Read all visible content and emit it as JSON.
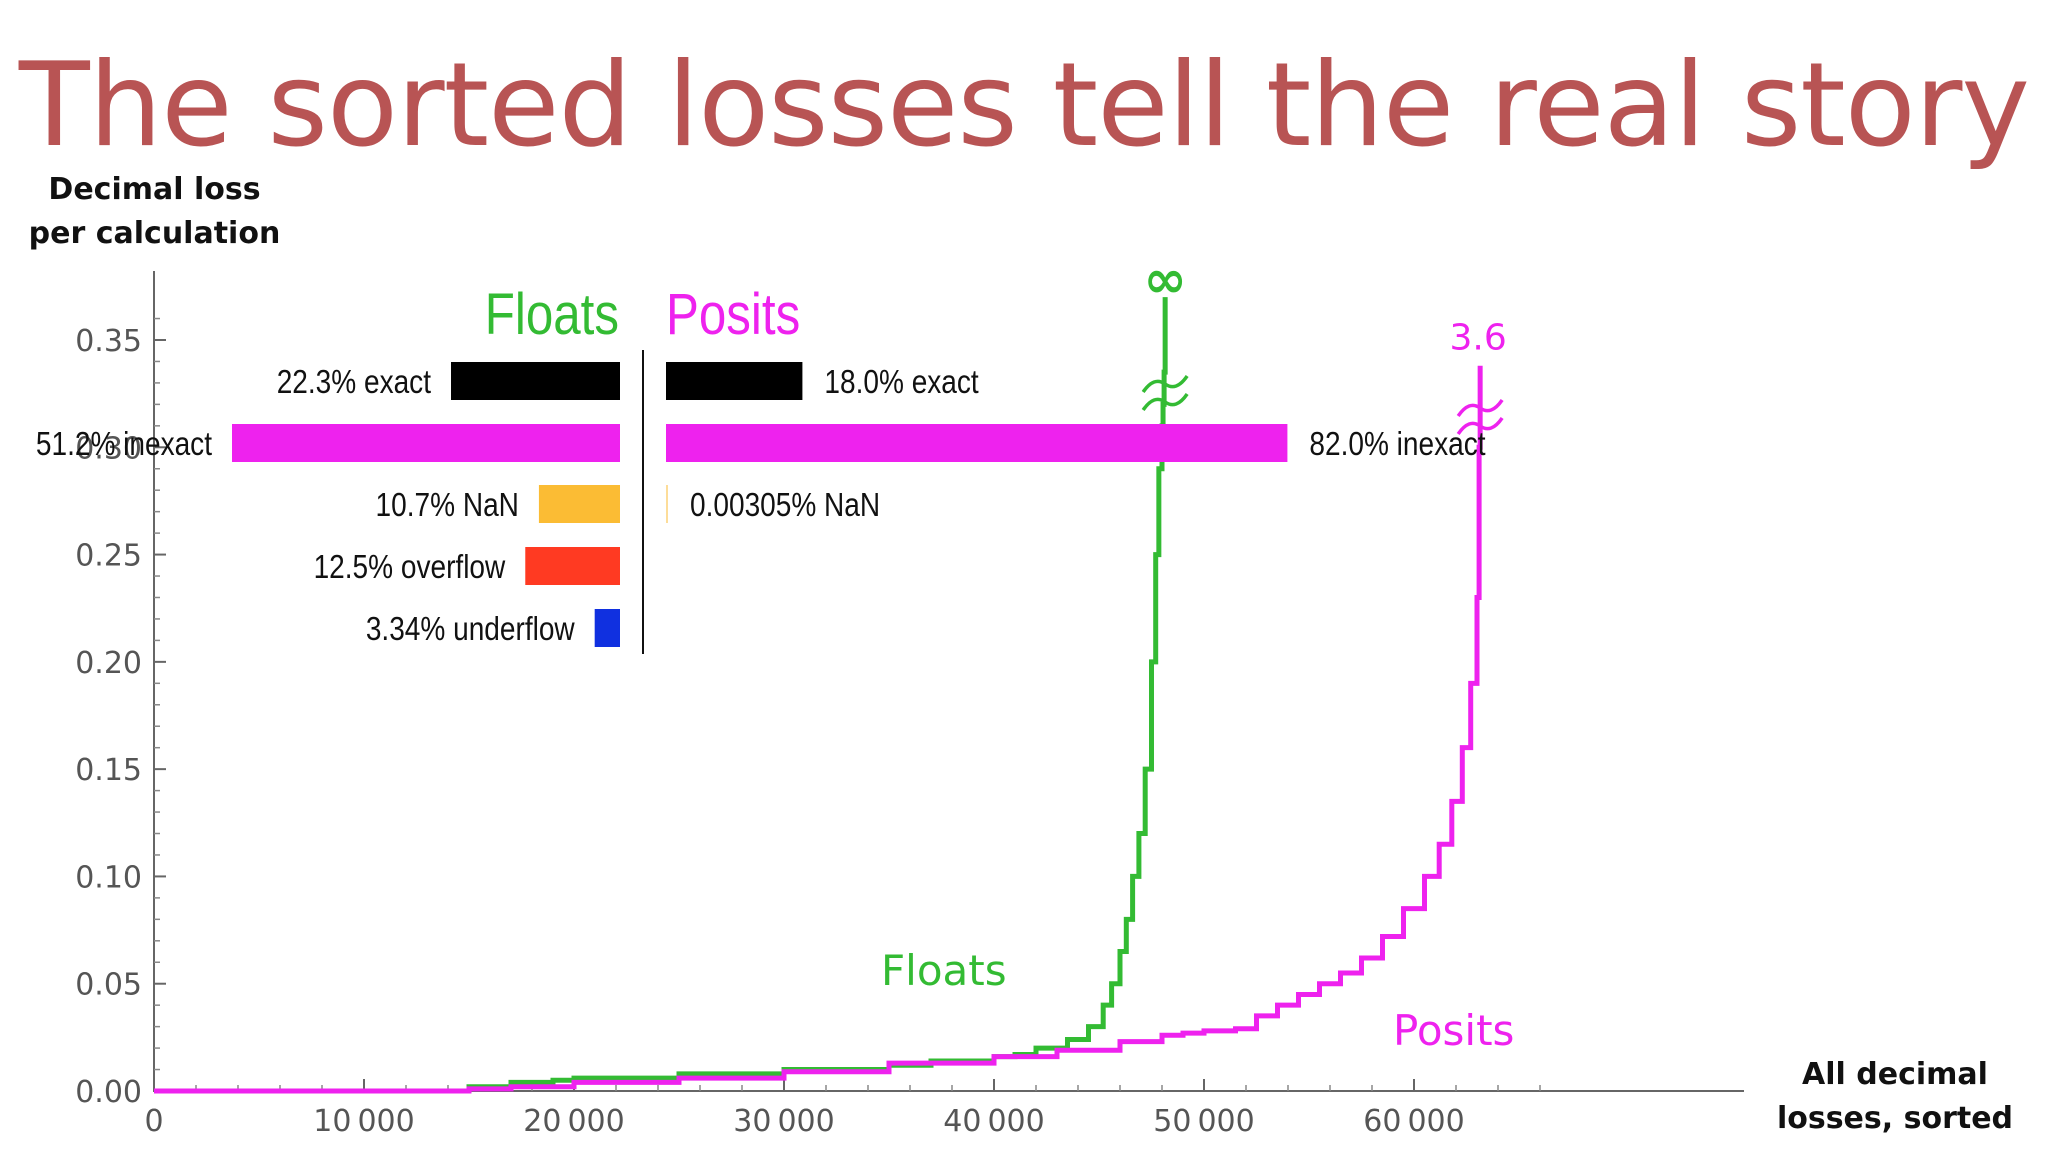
{
  "title": "The sorted losses tell the real story",
  "chart_data": {
    "type": "line",
    "ylabel_lines": [
      "Decimal loss",
      "per calculation"
    ],
    "xlabel_lines": [
      "All decimal",
      "losses, sorted"
    ],
    "xlim": [
      0,
      67500
    ],
    "ylim": [
      0,
      0.37
    ],
    "x_ticks": [
      0,
      10000,
      20000,
      30000,
      40000,
      50000,
      60000
    ],
    "x_tick_labels": [
      "0",
      "10 000",
      "20 000",
      "30 000",
      "40 000",
      "50 000",
      "60 000"
    ],
    "y_ticks": [
      0,
      0.05,
      0.1,
      0.15,
      0.2,
      0.25,
      0.3,
      0.35
    ],
    "y_tick_labels": [
      "0.00",
      "0.05",
      "0.10",
      "0.15",
      "0.20",
      "0.25",
      "0.30",
      "0.35"
    ],
    "grid": false,
    "series": [
      {
        "name": "Floats",
        "color": "#33bb33",
        "end_label": "∞",
        "x": [
          11800,
          15000,
          17000,
          19000,
          20000,
          25000,
          30000,
          35000,
          37000,
          40000,
          41000,
          42000,
          43500,
          44500,
          45200,
          45600,
          46000,
          46300,
          46600,
          46900,
          47200,
          47500,
          47700,
          47850,
          48000,
          48050,
          48100,
          48150
        ],
        "values": [
          0,
          0.002,
          0.004,
          0.005,
          0.006,
          0.008,
          0.01,
          0.012,
          0.014,
          0.016,
          0.017,
          0.02,
          0.024,
          0.03,
          0.04,
          0.05,
          0.065,
          0.08,
          0.1,
          0.12,
          0.15,
          0.2,
          0.25,
          0.29,
          0.31,
          0.32,
          0.335,
          0.37
        ]
      },
      {
        "name": "Posits",
        "color": "#ee22ee",
        "end_label": "3.6",
        "x": [
          11500,
          15000,
          17000,
          20000,
          25000,
          30000,
          35000,
          40000,
          43000,
          46000,
          48000,
          49000,
          50000,
          51500,
          52500,
          53500,
          54500,
          55500,
          56500,
          57500,
          58500,
          59500,
          60500,
          61200,
          61800,
          62300,
          62700,
          63000,
          63100,
          63150
        ],
        "values": [
          0,
          0.001,
          0.002,
          0.004,
          0.006,
          0.009,
          0.013,
          0.016,
          0.019,
          0.023,
          0.026,
          0.027,
          0.028,
          0.029,
          0.035,
          0.04,
          0.045,
          0.05,
          0.055,
          0.062,
          0.072,
          0.085,
          0.1,
          0.115,
          0.135,
          0.16,
          0.19,
          0.23,
          0.3,
          0.338
        ]
      }
    ],
    "curve_labels": [
      {
        "text": "Floats",
        "color": "#33bb33",
        "x": 41000,
        "y": 0.056
      },
      {
        "text": "Posits",
        "color": "#ee22ee",
        "x": 59000,
        "y": 0.028
      }
    ],
    "inset": {
      "floats_title": "Floats",
      "posits_title": "Posits",
      "floats_color": "#33bb33",
      "posits_color": "#ee22ee",
      "floats": [
        {
          "label": "22.3% exact",
          "value": 22.3,
          "color": "#000000"
        },
        {
          "label": "51.2% inexact",
          "value": 51.2,
          "color": "#ee22ee"
        },
        {
          "label": "10.7% NaN",
          "value": 10.7,
          "color": "#fbbc34"
        },
        {
          "label": "12.5% overflow",
          "value": 12.5,
          "color": "#ff3a22"
        },
        {
          "label": "3.34% underflow",
          "value": 3.34,
          "color": "#1030e0"
        }
      ],
      "posits": [
        {
          "label": "18.0% exact",
          "value": 18.0,
          "color": "#000000"
        },
        {
          "label": "82.0% inexact",
          "value": 82.0,
          "color": "#ee22ee"
        },
        {
          "label": "0.00305% NaN",
          "value": 0.00305,
          "color": "#fbbc34"
        }
      ]
    }
  }
}
